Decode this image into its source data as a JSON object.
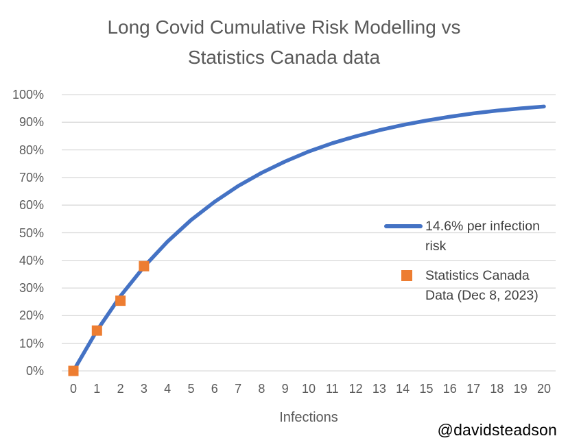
{
  "title": {
    "line1": "Long Covid Cumulative Risk Modelling vs",
    "line2": "Statistics Canada data"
  },
  "watermark": "@davidsteadson",
  "colors": {
    "model_line": "#4472C4",
    "statcan_marker": "#ED7D31",
    "gridline": "#D9D9D9",
    "axis_text": "#595959",
    "legend_text": "#404040",
    "title_text": "#595959",
    "watermark_text": "#000000"
  },
  "chart_data": {
    "type": "line",
    "title": "Long Covid Cumulative Risk Modelling vs Statistics Canada data",
    "xlabel": "Infections",
    "ylabel": "",
    "xlim": [
      0,
      20
    ],
    "ylim": [
      0,
      100
    ],
    "grid": true,
    "legend_position": "right-overlay",
    "xtick_labels": [
      "0",
      "1",
      "2",
      "3",
      "4",
      "5",
      "6",
      "7",
      "8",
      "9",
      "10",
      "11",
      "12",
      "13",
      "14",
      "15",
      "16",
      "17",
      "18",
      "19",
      "20"
    ],
    "ytick_labels": [
      "0%",
      "10%",
      "20%",
      "30%",
      "40%",
      "50%",
      "60%",
      "70%",
      "80%",
      "90%",
      "100%"
    ],
    "series": [
      {
        "name": "14.6% per infection risk",
        "type": "line",
        "color": "#4472C4",
        "x": [
          0,
          1,
          2,
          3,
          4,
          5,
          6,
          7,
          8,
          9,
          10,
          11,
          12,
          13,
          14,
          15,
          16,
          17,
          18,
          19,
          20
        ],
        "values": [
          0,
          14.6,
          27.1,
          37.7,
          46.8,
          54.6,
          61.2,
          66.9,
          71.7,
          75.8,
          79.4,
          82.4,
          84.9,
          87.1,
          89.0,
          90.6,
          92.0,
          93.2,
          94.2,
          95.0,
          95.7
        ]
      },
      {
        "name": "Statistics Canada Data (Dec 8, 2023)",
        "type": "scatter",
        "marker": "square",
        "color": "#ED7D31",
        "x": [
          0,
          1,
          2,
          3
        ],
        "values": [
          0,
          14.6,
          25.4,
          37.9
        ]
      }
    ],
    "legend": [
      {
        "label": "14.6% per infection risk",
        "swatch": "line",
        "color": "#4472C4"
      },
      {
        "label": "Statistics Canada Data (Dec 8, 2023)",
        "swatch": "square",
        "color": "#ED7D31"
      }
    ]
  }
}
